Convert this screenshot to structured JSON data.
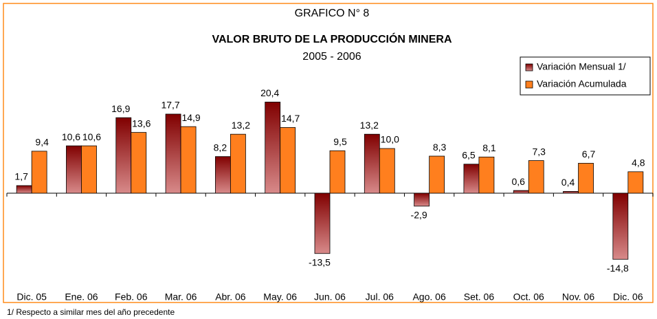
{
  "chart_data": {
    "type": "bar",
    "title": "GRAFICO N° 8",
    "subtitle": "VALOR BRUTO DE LA PRODUCCIÓN MINERA",
    "period": "2005 - 2006",
    "footnote": "1/ Respecto a similar mes del año precedente",
    "categories": [
      "Dic. 05",
      "Ene. 06",
      "Feb. 06",
      "Mar. 06",
      "Abr. 06",
      "May. 06",
      "Jun. 06",
      "Jul. 06",
      "Ago. 06",
      "Set. 06",
      "Oct. 06",
      "Nov. 06",
      "Dic. 06"
    ],
    "series": [
      {
        "name": "Variación Mensual 1/",
        "color": "#800000",
        "values": [
          1.7,
          10.6,
          16.9,
          17.7,
          8.2,
          20.4,
          -13.5,
          13.2,
          -2.9,
          6.5,
          0.6,
          0.4,
          -14.8
        ],
        "value_labels": [
          "1,7",
          "10,6",
          "16,9",
          "17,7",
          "8,2",
          "20,4",
          "-13,5",
          "13,2",
          "-2,9",
          "6,5",
          "0,6",
          "0,4",
          "-14,8"
        ]
      },
      {
        "name": "Variación Acumulada",
        "color": "#ff7f1e",
        "values": [
          9.4,
          10.6,
          13.6,
          14.9,
          13.2,
          14.7,
          9.5,
          10.0,
          8.3,
          8.1,
          7.3,
          6.7,
          4.8
        ],
        "value_labels": [
          "9,4",
          "10,6",
          "13,6",
          "14,9",
          "13,2",
          "14,7",
          "9,5",
          "10,0",
          "8,3",
          "8,1",
          "7,3",
          "6,7",
          "4,8"
        ]
      }
    ],
    "ylim": [
      -16,
      24
    ],
    "legend": "top-right"
  }
}
